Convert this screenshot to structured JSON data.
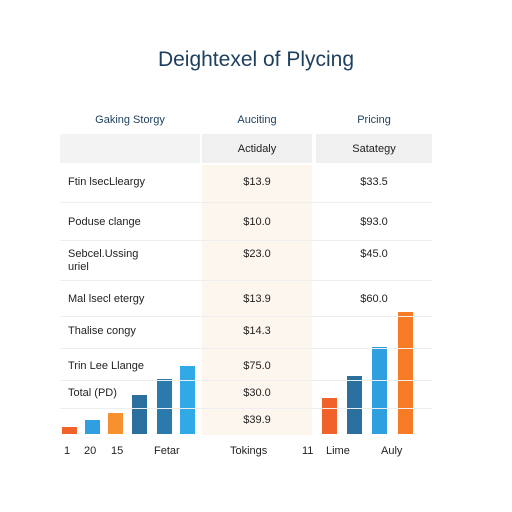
{
  "title": "Deightexel of Plycing",
  "columns": [
    "Gaking Storgy",
    "Auciting",
    "Pricing"
  ],
  "subheaders": [
    "Actidaly",
    "Satategy"
  ],
  "rows": [
    {
      "label": "Ftin lsecLleargy",
      "middle": "$13.9",
      "right": "$33.5"
    },
    {
      "label": "Poduse clange",
      "middle": "$10.0",
      "right": "$93.0"
    },
    {
      "label": "Sebcel.Ussing\nuriel",
      "middle": "$23.0",
      "right": "$45.0"
    },
    {
      "label": "Mal lsecl etergy",
      "middle": "$13.9",
      "right": "$60.0"
    },
    {
      "label": "Thalise congy",
      "middle": "$14.3"
    },
    {
      "label": "Trin Lee Llange",
      "middle": "$75.0"
    },
    {
      "label": "Total (PD)",
      "middle": "$30.0"
    },
    {
      "middle": "$39.9"
    }
  ],
  "footer": [
    "1",
    "20",
    "15",
    "Fetar",
    "Tokings",
    "11",
    "Lime",
    "Auly"
  ]
}
